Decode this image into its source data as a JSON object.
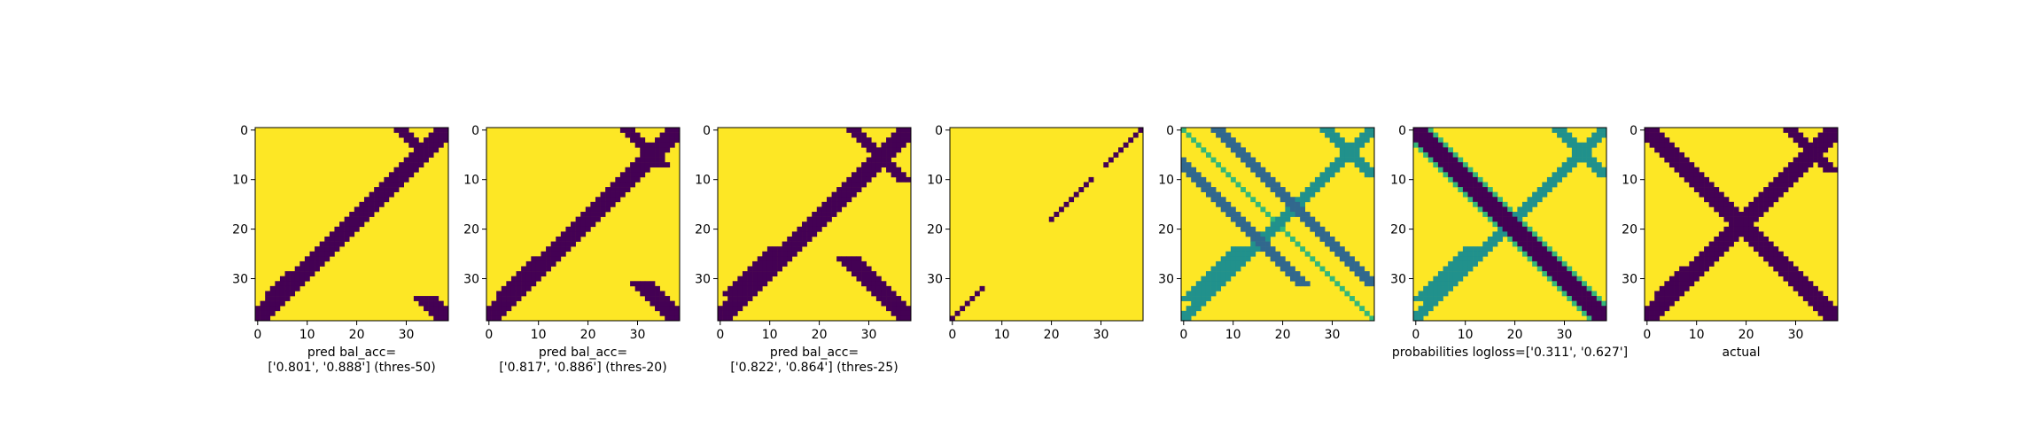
{
  "colors": {
    "low": "#440154",
    "high": "#fde725",
    "mid_dark": "#31688e",
    "mid": "#21918c",
    "mid_light": "#35b779",
    "light": "#90d743",
    "frame": "#000000"
  },
  "chart_data": [
    {
      "type": "heatmap",
      "title": "",
      "xlabel": "pred bal_acc=\n['0.801', '0.888'] (thres-50)",
      "ylabel": "",
      "grid_size": 39,
      "x_ticks": [
        0,
        10,
        20,
        30
      ],
      "y_ticks": [
        0,
        10,
        20,
        30
      ],
      "value_range": [
        0,
        1
      ],
      "colormap": "viridis",
      "bands": [
        {
          "kind": "anti_diagonal",
          "center": 39,
          "half_width": 2,
          "value": 0
        },
        {
          "kind": "diagonal",
          "offset": 0,
          "half_width": 2,
          "value": 0,
          "from": 34,
          "to": 38
        },
        {
          "kind": "diagonal",
          "offset": 29,
          "half_width": 1,
          "value": 0,
          "from": 0,
          "to": 5
        },
        {
          "kind": "anti_diagonal",
          "center": 36,
          "half_width": 0,
          "value": 0,
          "from": 29,
          "to": 33
        }
      ]
    },
    {
      "type": "heatmap",
      "title": "",
      "xlabel": "pred bal_acc=\n['0.817', '0.886'] (thres-20)",
      "ylabel": "",
      "grid_size": 39,
      "x_ticks": [
        0,
        10,
        20,
        30
      ],
      "y_ticks": [
        0,
        10,
        20,
        30
      ],
      "value_range": [
        0,
        1
      ],
      "colormap": "viridis",
      "bands": [
        {
          "kind": "anti_diagonal",
          "center": 39,
          "half_width": 2,
          "value": 0
        },
        {
          "kind": "diagonal",
          "offset": 0,
          "half_width": 2,
          "value": 0,
          "from": 31,
          "to": 38
        },
        {
          "kind": "diagonal",
          "offset": 28,
          "half_width": 1,
          "value": 0,
          "from": 0,
          "to": 7
        },
        {
          "kind": "anti_diagonal",
          "center": 36,
          "half_width": 0,
          "value": 0,
          "from": 26,
          "to": 33
        }
      ]
    },
    {
      "type": "heatmap",
      "title": "",
      "xlabel": "pred bal_acc=\n['0.822', '0.864'] (thres-25)",
      "ylabel": "",
      "grid_size": 39,
      "x_ticks": [
        0,
        10,
        20,
        30
      ],
      "y_ticks": [
        0,
        10,
        20,
        30
      ],
      "value_range": [
        0,
        1
      ],
      "colormap": "viridis",
      "bands": [
        {
          "kind": "anti_diagonal",
          "center": 39,
          "half_width": 2,
          "value": 0
        },
        {
          "kind": "diagonal",
          "offset": 0,
          "half_width": 2,
          "value": 0,
          "from": 26,
          "to": 38
        },
        {
          "kind": "diagonal",
          "offset": 27,
          "half_width": 1,
          "value": 0,
          "from": 0,
          "to": 10
        },
        {
          "kind": "anti_diagonal",
          "center": 36,
          "half_width": 1,
          "value": 0,
          "from": 24,
          "to": 33
        }
      ]
    },
    {
      "type": "heatmap",
      "title": "",
      "xlabel": "",
      "ylabel": "",
      "grid_size": 39,
      "x_ticks": [
        0,
        10,
        20,
        30
      ],
      "y_ticks": [
        0,
        10,
        20,
        30
      ],
      "value_range": [
        0,
        1
      ],
      "colormap": "viridis",
      "bands": [
        {
          "kind": "anti_diagonal",
          "center": 39,
          "half_width": 0,
          "value": 0,
          "from": 0,
          "to": 7
        },
        {
          "kind": "anti_diagonal",
          "center": 39,
          "half_width": 0,
          "value": 0,
          "from": 10,
          "to": 18
        },
        {
          "kind": "anti_diagonal",
          "center": 39,
          "half_width": 0,
          "value": 0,
          "from": 32,
          "to": 38
        }
      ]
    },
    {
      "type": "heatmap",
      "title": "",
      "xlabel": "",
      "ylabel": "",
      "grid_size": 39,
      "x_ticks": [
        0,
        10,
        20,
        30
      ],
      "y_ticks": [
        0,
        10,
        20,
        30
      ],
      "value_range": [
        0,
        1
      ],
      "colormap": "viridis",
      "bands": [
        {
          "kind": "diagonal",
          "offset": 0,
          "half_width": 0,
          "value": 0.35
        },
        {
          "kind": "diagonal",
          "offset": 7,
          "half_width": 1,
          "value": 0.1,
          "from": 0,
          "to": 31
        },
        {
          "kind": "anti_diagonal",
          "center": 39,
          "half_width": 1,
          "value": 0.25
        },
        {
          "kind": "diagonal",
          "offset": 29,
          "half_width": 1,
          "value": 0.3,
          "from": 0,
          "to": 9
        },
        {
          "kind": "anti_diagonal",
          "center": 36,
          "half_width": 1,
          "value": 0.3,
          "from": 24,
          "to": 34
        }
      ]
    },
    {
      "type": "heatmap",
      "title": "",
      "xlabel": "probabilities logloss=['0.311', '0.627']",
      "ylabel": "",
      "grid_size": 39,
      "x_ticks": [
        0,
        10,
        20,
        30
      ],
      "y_ticks": [
        0,
        10,
        20,
        30
      ],
      "value_range": [
        0,
        1
      ],
      "colormap": "viridis",
      "bands": [
        {
          "kind": "diagonal",
          "offset": 0,
          "half_width": 2,
          "value": 0
        },
        {
          "kind": "diagonal",
          "offset": 0,
          "half_width": 3,
          "value": 0.35
        },
        {
          "kind": "anti_diagonal",
          "center": 39,
          "half_width": 1,
          "value": 0.25
        },
        {
          "kind": "diagonal",
          "offset": 29,
          "half_width": 1,
          "value": 0.3,
          "from": 0,
          "to": 9
        },
        {
          "kind": "anti_diagonal",
          "center": 36,
          "half_width": 1,
          "value": 0.3,
          "from": 24,
          "to": 34
        }
      ]
    },
    {
      "type": "heatmap",
      "title": "",
      "xlabel": "actual",
      "ylabel": "",
      "grid_size": 39,
      "x_ticks": [
        0,
        10,
        20,
        30
      ],
      "y_ticks": [
        0,
        10,
        20,
        30
      ],
      "value_range": [
        0,
        1
      ],
      "colormap": "viridis",
      "bands": [
        {
          "kind": "diagonal",
          "offset": 0,
          "half_width": 2,
          "value": 0
        },
        {
          "kind": "anti_diagonal",
          "center": 39,
          "half_width": 2,
          "value": 0
        },
        {
          "kind": "diagonal",
          "offset": 29,
          "half_width": 1,
          "value": 0,
          "from": 0,
          "to": 8
        },
        {
          "kind": "anti_diagonal",
          "center": 36,
          "half_width": 0,
          "value": 0,
          "from": 28,
          "to": 33
        }
      ]
    }
  ]
}
